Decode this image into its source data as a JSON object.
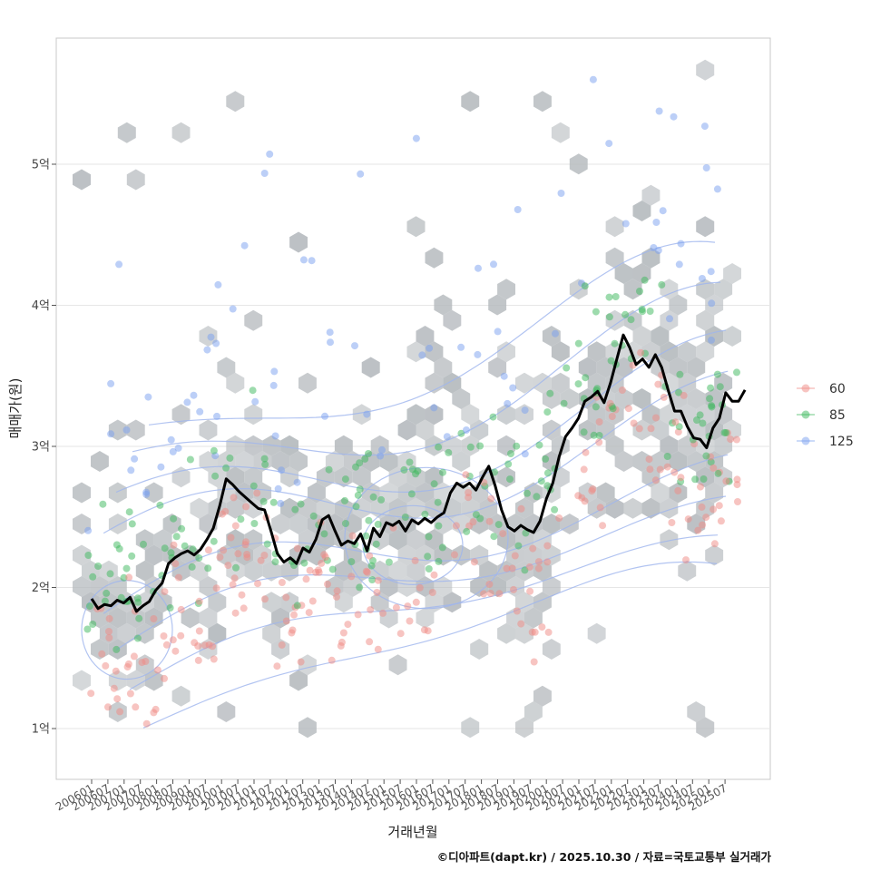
{
  "chart_data": {
    "type": "scatter",
    "title": "",
    "xlabel": "거래년월",
    "ylabel": "매매가(원)",
    "ylim": [
      0.65,
      5.9
    ],
    "y_ticks": [
      {
        "value": 1,
        "label": "1억"
      },
      {
        "value": 2,
        "label": "2억"
      },
      {
        "value": 3,
        "label": "3억"
      },
      {
        "value": 4,
        "label": "4억"
      },
      {
        "value": 5,
        "label": "5억"
      }
    ],
    "x_ticks": [
      "200601",
      "200607",
      "200701",
      "200707",
      "200801",
      "200807",
      "200901",
      "200907",
      "201001",
      "201007",
      "201101",
      "201107",
      "201201",
      "201207",
      "201301",
      "201307",
      "201401",
      "201407",
      "201501",
      "201507",
      "201601",
      "201607",
      "201701",
      "201707",
      "201801",
      "201807",
      "201901",
      "201907",
      "202001",
      "202007",
      "202101",
      "202107",
      "202201",
      "202207",
      "202301",
      "202307",
      "202401",
      "202407",
      "202501",
      "202507"
    ],
    "legend": {
      "position": "right",
      "entries": [
        {
          "label": "60",
          "color": "#f08a84"
        },
        {
          "label": "85",
          "color": "#3cb85c"
        },
        {
          "label": "125",
          "color": "#7a9ff0"
        }
      ]
    },
    "trend_line": {
      "name": "median price",
      "color": "#000000",
      "points": [
        [
          0,
          1.92
        ],
        [
          1,
          1.85
        ],
        [
          2,
          1.88
        ],
        [
          3,
          1.87
        ],
        [
          4,
          1.91
        ],
        [
          5,
          1.89
        ],
        [
          6,
          1.93
        ],
        [
          7,
          1.83
        ],
        [
          8,
          1.87
        ],
        [
          9,
          1.9
        ],
        [
          10,
          1.98
        ],
        [
          11,
          2.03
        ],
        [
          12,
          2.17
        ],
        [
          13,
          2.21
        ],
        [
          14,
          2.24
        ],
        [
          15,
          2.26
        ],
        [
          16,
          2.23
        ],
        [
          17,
          2.27
        ],
        [
          18,
          2.34
        ],
        [
          19,
          2.42
        ],
        [
          20,
          2.58
        ],
        [
          21,
          2.77
        ],
        [
          22,
          2.73
        ],
        [
          23,
          2.68
        ],
        [
          24,
          2.64
        ],
        [
          25,
          2.6
        ],
        [
          26,
          2.56
        ],
        [
          27,
          2.55
        ],
        [
          28,
          2.4
        ],
        [
          29,
          2.24
        ],
        [
          30,
          2.18
        ],
        [
          31,
          2.21
        ],
        [
          32,
          2.17
        ],
        [
          33,
          2.28
        ],
        [
          34,
          2.25
        ],
        [
          35,
          2.34
        ],
        [
          36,
          2.48
        ],
        [
          37,
          2.51
        ],
        [
          38,
          2.4
        ],
        [
          39,
          2.3
        ],
        [
          40,
          2.33
        ],
        [
          41,
          2.31
        ],
        [
          42,
          2.38
        ],
        [
          43,
          2.26
        ],
        [
          44,
          2.42
        ],
        [
          45,
          2.36
        ],
        [
          46,
          2.46
        ],
        [
          47,
          2.44
        ],
        [
          48,
          2.47
        ],
        [
          49,
          2.4
        ],
        [
          50,
          2.48
        ],
        [
          51,
          2.45
        ],
        [
          52,
          2.49
        ],
        [
          53,
          2.46
        ],
        [
          54,
          2.5
        ],
        [
          55,
          2.53
        ],
        [
          56,
          2.67
        ],
        [
          57,
          2.74
        ],
        [
          58,
          2.71
        ],
        [
          59,
          2.74
        ],
        [
          60,
          2.69
        ],
        [
          61,
          2.78
        ],
        [
          62,
          2.86
        ],
        [
          63,
          2.72
        ],
        [
          64,
          2.55
        ],
        [
          65,
          2.43
        ],
        [
          66,
          2.4
        ],
        [
          67,
          2.44
        ],
        [
          68,
          2.41
        ],
        [
          69,
          2.39
        ],
        [
          70,
          2.47
        ],
        [
          71,
          2.63
        ],
        [
          72,
          2.74
        ],
        [
          73,
          2.93
        ],
        [
          74,
          3.07
        ],
        [
          75,
          3.13
        ],
        [
          76,
          3.2
        ],
        [
          77,
          3.32
        ],
        [
          78,
          3.35
        ],
        [
          79,
          3.39
        ],
        [
          80,
          3.31
        ],
        [
          81,
          3.45
        ],
        [
          82,
          3.62
        ],
        [
          83,
          3.79
        ],
        [
          84,
          3.7
        ],
        [
          85,
          3.58
        ],
        [
          86,
          3.62
        ],
        [
          87,
          3.56
        ],
        [
          88,
          3.65
        ],
        [
          89,
          3.56
        ],
        [
          90,
          3.4
        ],
        [
          91,
          3.25
        ],
        [
          92,
          3.25
        ],
        [
          93,
          3.14
        ],
        [
          94,
          3.06
        ],
        [
          95,
          3.05
        ],
        [
          96,
          2.99
        ],
        [
          97,
          3.13
        ],
        [
          98,
          3.2
        ],
        [
          99,
          3.38
        ],
        [
          100,
          3.32
        ],
        [
          101,
          3.32
        ],
        [
          102,
          3.4
        ]
      ]
    },
    "density_contours": {
      "color": "#9fb5ee",
      "note": "2D density contours of transactions"
    },
    "hexbins": {
      "color": "#b3b8bc",
      "note": "hexagonal binning of transaction counts"
    }
  },
  "caption": "©디아파트(dapt.kr) / 2025.10.30 / 자료=국토교통부 실거래가"
}
